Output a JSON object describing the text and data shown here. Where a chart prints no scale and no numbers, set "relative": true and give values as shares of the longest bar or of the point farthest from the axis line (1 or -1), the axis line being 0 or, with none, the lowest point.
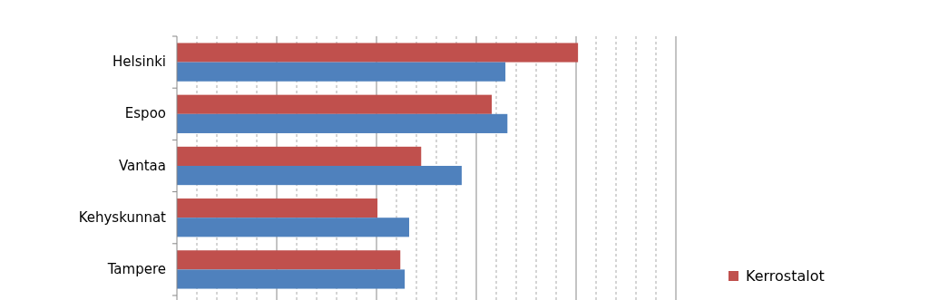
{
  "chart_data": {
    "type": "bar",
    "orientation": "horizontal",
    "relative": true,
    "categories": [
      "Helsinki",
      "Espoo",
      "Vantaa",
      "Kehyskunnat",
      "Tampere"
    ],
    "series": [
      {
        "name": "Kerrostalot",
        "color": "#c0504d",
        "values": [
          1,
          0.785,
          0.609,
          0.5,
          0.557
        ]
      },
      {
        "color": "#4f81bd",
        "values": [
          0.819,
          0.824,
          0.71,
          0.579,
          0.568
        ]
      }
    ],
    "grid": "x",
    "legend": "bottom right"
  }
}
